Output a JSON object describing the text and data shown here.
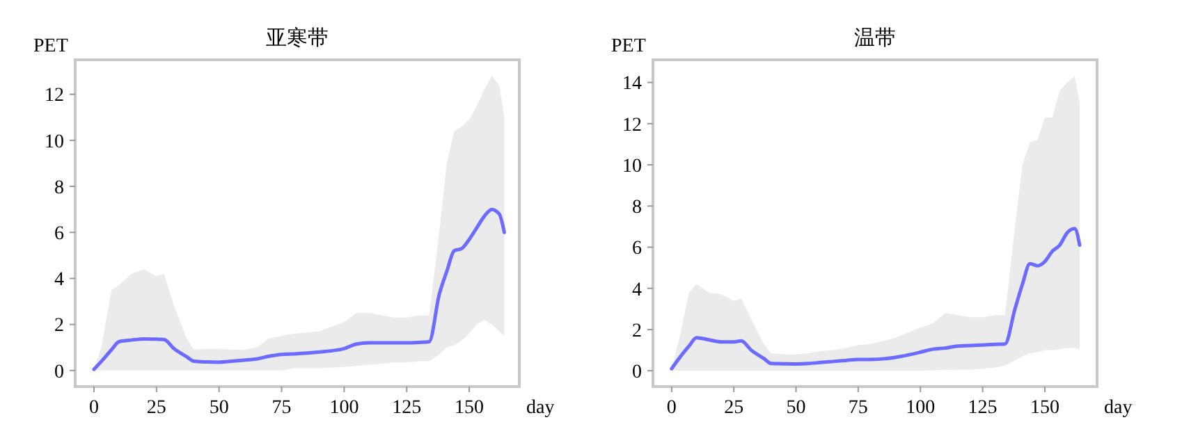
{
  "chart_data": [
    {
      "type": "line",
      "title": "亚寒带",
      "xlabel": "day",
      "ylabel": "PET",
      "xlim": [
        -7.5,
        170
      ],
      "xticks": [
        0,
        25,
        50,
        75,
        100,
        125,
        150
      ],
      "ylim": [
        -0.7,
        13.5
      ],
      "yticks": [
        0,
        2,
        4,
        6,
        8,
        10,
        12
      ],
      "x": [
        0,
        3,
        7,
        10,
        15,
        20,
        25,
        28,
        32,
        37,
        40,
        45,
        50,
        55,
        60,
        65,
        70,
        75,
        80,
        90,
        100,
        105,
        110,
        115,
        120,
        125,
        130,
        134,
        138,
        141,
        144,
        147,
        150,
        153,
        156,
        159,
        162,
        164
      ],
      "series": [
        {
          "color": "#6b6bff",
          "values": [
            0.05,
            0.4,
            0.9,
            1.25,
            1.32,
            1.37,
            1.36,
            1.35,
            0.95,
            0.6,
            0.4,
            0.37,
            0.36,
            0.4,
            0.45,
            0.5,
            0.62,
            0.7,
            0.72,
            0.8,
            0.95,
            1.15,
            1.2,
            1.2,
            1.2,
            1.2,
            1.22,
            1.25,
            3.3,
            4.3,
            5.2,
            5.3,
            5.7,
            6.2,
            6.7,
            7.0,
            6.8,
            6.0
          ],
          "upper": [
            0.1,
            1.0,
            3.5,
            3.7,
            4.2,
            4.4,
            4.1,
            4.2,
            2.8,
            1.4,
            0.9,
            0.95,
            0.95,
            0.9,
            0.9,
            1.0,
            1.4,
            1.5,
            1.6,
            1.7,
            2.1,
            2.5,
            2.5,
            2.4,
            2.3,
            2.3,
            2.4,
            2.4,
            6.0,
            9.0,
            10.4,
            10.6,
            10.9,
            11.5,
            12.2,
            12.8,
            12.4,
            11.0
          ],
          "lower": [
            0,
            0,
            0,
            0,
            0,
            0,
            0,
            0,
            0,
            0,
            0,
            0,
            0,
            0,
            0,
            0,
            0,
            0,
            0.1,
            0.1,
            0.15,
            0.2,
            0.25,
            0.3,
            0.35,
            0.35,
            0.4,
            0.4,
            0.7,
            1.0,
            1.1,
            1.3,
            1.6,
            2.0,
            2.2,
            2.0,
            1.7,
            1.5
          ]
        }
      ]
    },
    {
      "type": "line",
      "title": "温带",
      "xlabel": "day",
      "ylabel": "PET",
      "xlim": [
        -7.5,
        171
      ],
      "xticks": [
        0,
        25,
        50,
        75,
        100,
        125,
        150
      ],
      "ylim": [
        -0.77,
        15.1
      ],
      "yticks": [
        0,
        2,
        4,
        6,
        8,
        10,
        12,
        14
      ],
      "x": [
        0,
        3,
        7,
        10,
        15,
        20,
        25,
        28,
        32,
        37,
        40,
        45,
        50,
        55,
        60,
        65,
        70,
        75,
        80,
        90,
        100,
        105,
        110,
        115,
        120,
        125,
        130,
        134,
        138,
        141,
        144,
        147,
        150,
        153,
        156,
        159,
        162,
        164
      ],
      "series": [
        {
          "color": "#6b6bff",
          "values": [
            0.1,
            0.6,
            1.2,
            1.6,
            1.5,
            1.4,
            1.4,
            1.45,
            1.0,
            0.6,
            0.35,
            0.34,
            0.33,
            0.35,
            0.4,
            0.45,
            0.5,
            0.55,
            0.55,
            0.65,
            0.9,
            1.05,
            1.1,
            1.2,
            1.22,
            1.25,
            1.28,
            1.3,
            3.0,
            4.2,
            5.2,
            5.1,
            5.3,
            5.8,
            6.1,
            6.7,
            6.9,
            6.1
          ],
          "upper": [
            0.1,
            1.5,
            3.8,
            4.2,
            3.8,
            3.7,
            3.4,
            3.5,
            2.5,
            1.3,
            0.85,
            0.8,
            0.8,
            0.85,
            0.95,
            1.0,
            1.1,
            1.25,
            1.3,
            1.6,
            2.1,
            2.3,
            2.8,
            2.7,
            2.6,
            2.6,
            2.7,
            2.7,
            7.0,
            10.0,
            11.1,
            11.2,
            12.3,
            12.3,
            13.6,
            14.0,
            14.3,
            13.0
          ],
          "lower": [
            0,
            0,
            0,
            0,
            0,
            0,
            0,
            0,
            0,
            0,
            0,
            0,
            0,
            0,
            0,
            0,
            0,
            0,
            0,
            0,
            0,
            0.02,
            0.03,
            0.05,
            0.05,
            0.1,
            0.15,
            0.25,
            0.5,
            0.7,
            0.85,
            0.9,
            1.0,
            1.0,
            1.05,
            1.1,
            1.1,
            1.05
          ]
        }
      ]
    }
  ]
}
